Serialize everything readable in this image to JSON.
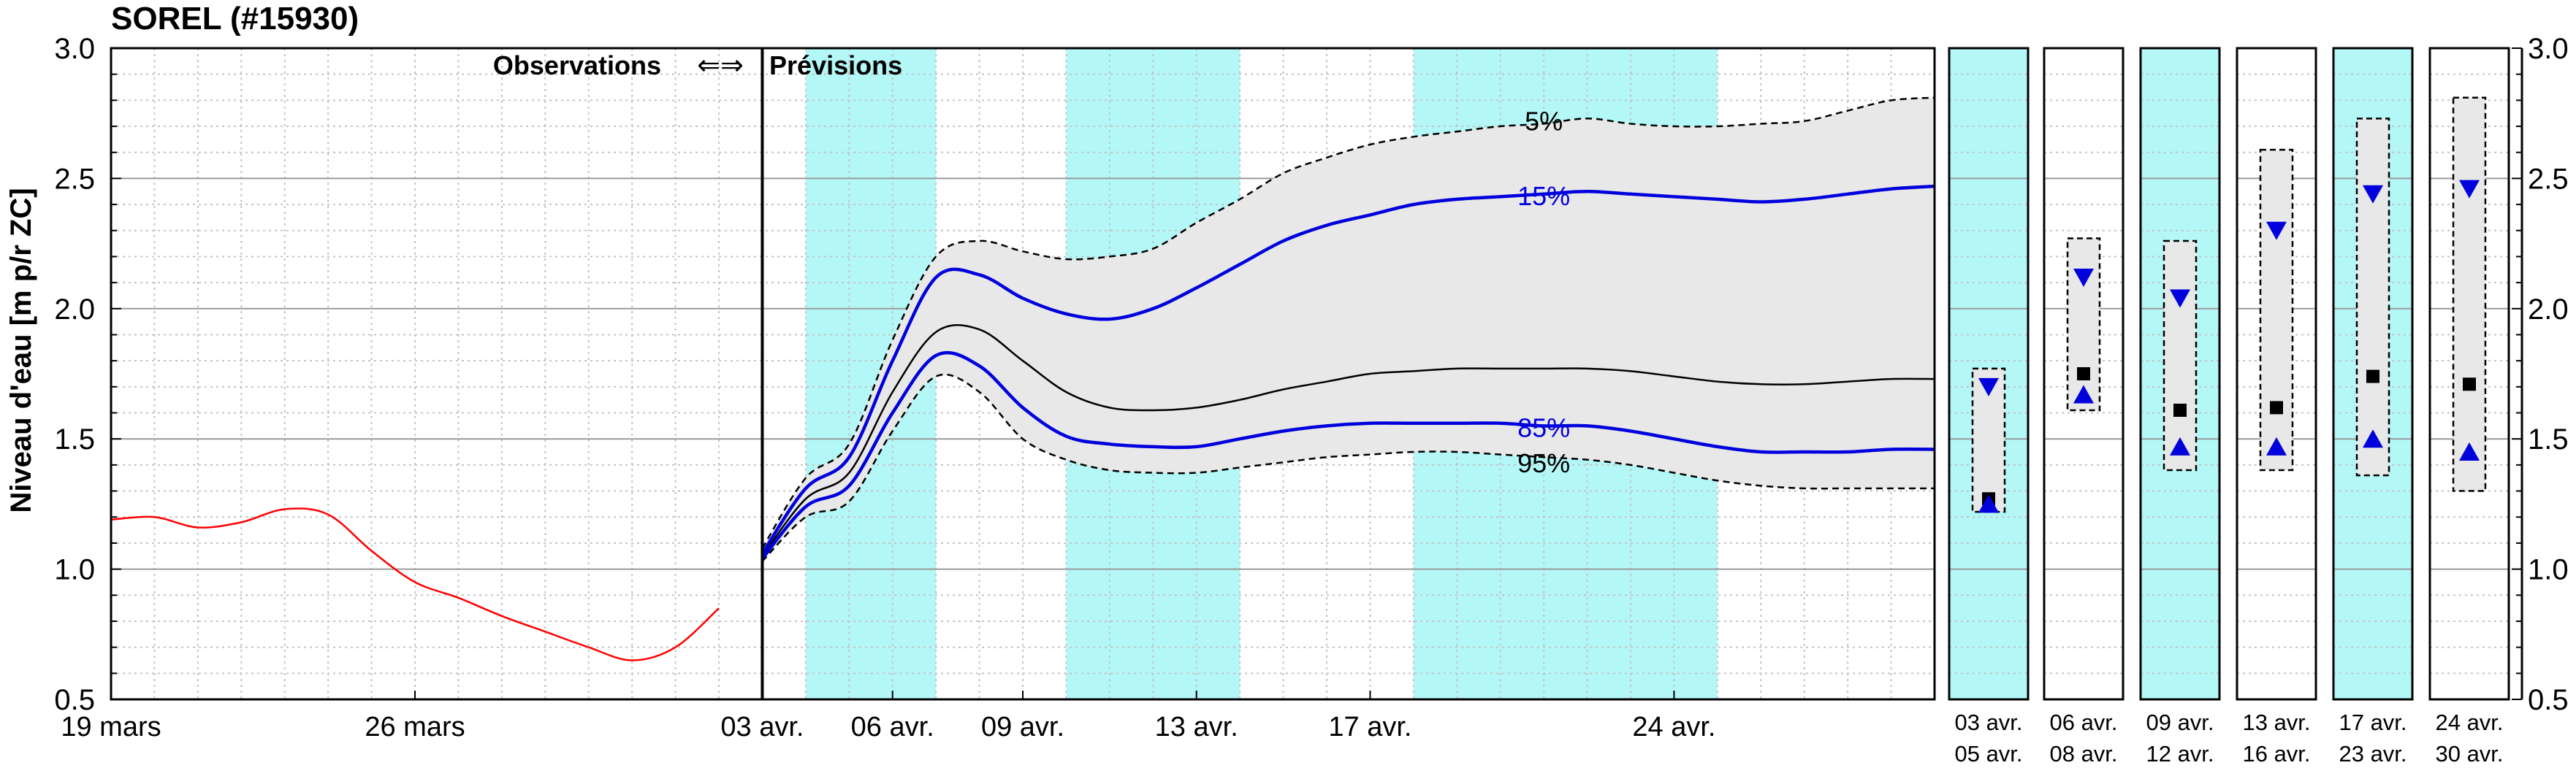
{
  "chart_data": {
    "type": "line",
    "title": "SOREL (#15930)",
    "ylabel": "Niveau d'eau [m p/r ZC]",
    "ylim": [
      0.5,
      3.0
    ],
    "yticks": [
      "0.5",
      "1.0",
      "1.5",
      "2.0",
      "2.5",
      "3.0"
    ],
    "x_unit": "day",
    "xlim": [
      "2024-03-19",
      "2024-04-30"
    ],
    "xticks": [
      {
        "date": "2024-03-19",
        "label": "19 mars"
      },
      {
        "date": "2024-03-26",
        "label": "26 mars"
      },
      {
        "date": "2024-04-03",
        "label": "03 avr."
      },
      {
        "date": "2024-04-06",
        "label": "06 avr."
      },
      {
        "date": "2024-04-09",
        "label": "09 avr."
      },
      {
        "date": "2024-04-13",
        "label": "13 avr."
      },
      {
        "date": "2024-04-17",
        "label": "17 avr."
      },
      {
        "date": "2024-04-24",
        "label": "24 avr."
      }
    ],
    "boundary_date": "2024-04-03",
    "section_labels": {
      "left": "Observations",
      "arrows": "⇐⇒",
      "right": "Prévisions"
    },
    "highlight_ranges": [
      [
        "2024-04-04",
        "2024-04-07"
      ],
      [
        "2024-04-10",
        "2024-04-14"
      ],
      [
        "2024-04-18",
        "2024-04-25"
      ]
    ],
    "colors": {
      "observation": "#ff0000",
      "median": "#000000",
      "inner_band": "#0000dd",
      "outer_band": "#000000",
      "band_fill": "#e8e8e8",
      "highlight": "#b3f7f7"
    },
    "series": [
      {
        "role": "observation",
        "x": [
          "2024-03-19",
          "2024-03-20",
          "2024-03-21",
          "2024-03-22",
          "2024-03-23",
          "2024-03-24",
          "2024-03-25",
          "2024-03-26",
          "2024-03-27",
          "2024-03-28",
          "2024-03-29",
          "2024-03-30",
          "2024-03-31",
          "2024-04-01",
          "2024-04-02"
        ],
        "values": [
          1.19,
          1.2,
          1.16,
          1.18,
          1.23,
          1.21,
          1.07,
          0.95,
          0.89,
          0.82,
          0.76,
          0.7,
          0.65,
          0.7,
          0.85
        ]
      },
      {
        "name": "5%",
        "role": "outer_band_upper",
        "x": [
          "2024-04-03",
          "2024-04-04",
          "2024-04-05",
          "2024-04-06",
          "2024-04-07",
          "2024-04-08",
          "2024-04-09",
          "2024-04-10",
          "2024-04-11",
          "2024-04-12",
          "2024-04-13",
          "2024-04-14",
          "2024-04-15",
          "2024-04-16",
          "2024-04-17",
          "2024-04-18",
          "2024-04-19",
          "2024-04-20",
          "2024-04-21",
          "2024-04-22",
          "2024-04-23",
          "2024-04-24",
          "2024-04-25",
          "2024-04-26",
          "2024-04-27",
          "2024-04-28",
          "2024-04-29",
          "2024-04-30"
        ],
        "values": [
          1.08,
          1.35,
          1.48,
          1.88,
          2.2,
          2.26,
          2.22,
          2.19,
          2.2,
          2.23,
          2.33,
          2.42,
          2.52,
          2.58,
          2.63,
          2.66,
          2.68,
          2.7,
          2.71,
          2.73,
          2.71,
          2.7,
          2.7,
          2.71,
          2.72,
          2.76,
          2.8,
          2.81
        ]
      },
      {
        "name": "15%",
        "role": "inner_band_upper",
        "x": [
          "2024-04-03",
          "2024-04-04",
          "2024-04-05",
          "2024-04-06",
          "2024-04-07",
          "2024-04-08",
          "2024-04-09",
          "2024-04-10",
          "2024-04-11",
          "2024-04-12",
          "2024-04-13",
          "2024-04-14",
          "2024-04-15",
          "2024-04-16",
          "2024-04-17",
          "2024-04-18",
          "2024-04-19",
          "2024-04-20",
          "2024-04-21",
          "2024-04-22",
          "2024-04-23",
          "2024-04-24",
          "2024-04-25",
          "2024-04-26",
          "2024-04-27",
          "2024-04-28",
          "2024-04-29",
          "2024-04-30"
        ],
        "values": [
          1.06,
          1.31,
          1.43,
          1.8,
          2.12,
          2.13,
          2.04,
          1.98,
          1.96,
          2.0,
          2.08,
          2.17,
          2.26,
          2.32,
          2.36,
          2.4,
          2.42,
          2.43,
          2.44,
          2.45,
          2.44,
          2.43,
          2.42,
          2.41,
          2.42,
          2.44,
          2.46,
          2.47
        ]
      },
      {
        "role": "median",
        "x": [
          "2024-04-03",
          "2024-04-04",
          "2024-04-05",
          "2024-04-06",
          "2024-04-07",
          "2024-04-08",
          "2024-04-09",
          "2024-04-10",
          "2024-04-11",
          "2024-04-12",
          "2024-04-13",
          "2024-04-14",
          "2024-04-15",
          "2024-04-16",
          "2024-04-17",
          "2024-04-18",
          "2024-04-19",
          "2024-04-20",
          "2024-04-21",
          "2024-04-22",
          "2024-04-23",
          "2024-04-24",
          "2024-04-25",
          "2024-04-26",
          "2024-04-27",
          "2024-04-28",
          "2024-04-29",
          "2024-04-30"
        ],
        "values": [
          1.05,
          1.27,
          1.37,
          1.68,
          1.91,
          1.92,
          1.8,
          1.68,
          1.62,
          1.61,
          1.62,
          1.65,
          1.69,
          1.72,
          1.75,
          1.76,
          1.77,
          1.77,
          1.77,
          1.77,
          1.76,
          1.74,
          1.72,
          1.71,
          1.71,
          1.72,
          1.73,
          1.73
        ]
      },
      {
        "name": "85%",
        "role": "inner_band_lower",
        "x": [
          "2024-04-03",
          "2024-04-04",
          "2024-04-05",
          "2024-04-06",
          "2024-04-07",
          "2024-04-08",
          "2024-04-09",
          "2024-04-10",
          "2024-04-11",
          "2024-04-12",
          "2024-04-13",
          "2024-04-14",
          "2024-04-15",
          "2024-04-16",
          "2024-04-17",
          "2024-04-18",
          "2024-04-19",
          "2024-04-20",
          "2024-04-21",
          "2024-04-22",
          "2024-04-23",
          "2024-04-24",
          "2024-04-25",
          "2024-04-26",
          "2024-04-27",
          "2024-04-28",
          "2024-04-29",
          "2024-04-30"
        ],
        "values": [
          1.04,
          1.24,
          1.32,
          1.6,
          1.82,
          1.78,
          1.62,
          1.51,
          1.48,
          1.47,
          1.47,
          1.5,
          1.53,
          1.55,
          1.56,
          1.56,
          1.56,
          1.56,
          1.55,
          1.55,
          1.53,
          1.5,
          1.47,
          1.45,
          1.45,
          1.45,
          1.46,
          1.46
        ]
      },
      {
        "name": "95%",
        "role": "outer_band_lower",
        "x": [
          "2024-04-03",
          "2024-04-04",
          "2024-04-05",
          "2024-04-06",
          "2024-04-07",
          "2024-04-08",
          "2024-04-09",
          "2024-04-10",
          "2024-04-11",
          "2024-04-12",
          "2024-04-13",
          "2024-04-14",
          "2024-04-15",
          "2024-04-16",
          "2024-04-17",
          "2024-04-18",
          "2024-04-19",
          "2024-04-20",
          "2024-04-21",
          "2024-04-22",
          "2024-04-23",
          "2024-04-24",
          "2024-04-25",
          "2024-04-26",
          "2024-04-27",
          "2024-04-28",
          "2024-04-29",
          "2024-04-30"
        ],
        "values": [
          1.03,
          1.2,
          1.26,
          1.53,
          1.74,
          1.68,
          1.5,
          1.42,
          1.38,
          1.37,
          1.37,
          1.39,
          1.41,
          1.43,
          1.44,
          1.45,
          1.45,
          1.44,
          1.43,
          1.42,
          1.4,
          1.37,
          1.34,
          1.32,
          1.31,
          1.31,
          1.31,
          1.31
        ]
      }
    ],
    "period_panels": [
      {
        "label_top": "03 avr.",
        "label_bottom": "05 avr.",
        "highlight": true,
        "box": [
          1.22,
          1.77
        ],
        "median": 1.27,
        "upper": 1.7,
        "lower": 1.25
      },
      {
        "label_top": "06 avr.",
        "label_bottom": "08 avr.",
        "highlight": false,
        "box": [
          1.61,
          2.27
        ],
        "median": 1.75,
        "upper": 2.12,
        "lower": 1.67
      },
      {
        "label_top": "09 avr.",
        "label_bottom": "12 avr.",
        "highlight": true,
        "box": [
          1.38,
          2.26
        ],
        "median": 1.61,
        "upper": 2.04,
        "lower": 1.47
      },
      {
        "label_top": "13 avr.",
        "label_bottom": "16 avr.",
        "highlight": false,
        "box": [
          1.38,
          2.61
        ],
        "median": 1.62,
        "upper": 2.3,
        "lower": 1.47
      },
      {
        "label_top": "17 avr.",
        "label_bottom": "23 avr.",
        "highlight": true,
        "box": [
          1.36,
          2.73
        ],
        "median": 1.74,
        "upper": 2.44,
        "lower": 1.5
      },
      {
        "label_top": "24 avr.",
        "label_bottom": "30 avr.",
        "highlight": false,
        "box": [
          1.3,
          2.81
        ],
        "median": 1.71,
        "upper": 2.46,
        "lower": 1.45
      }
    ]
  }
}
